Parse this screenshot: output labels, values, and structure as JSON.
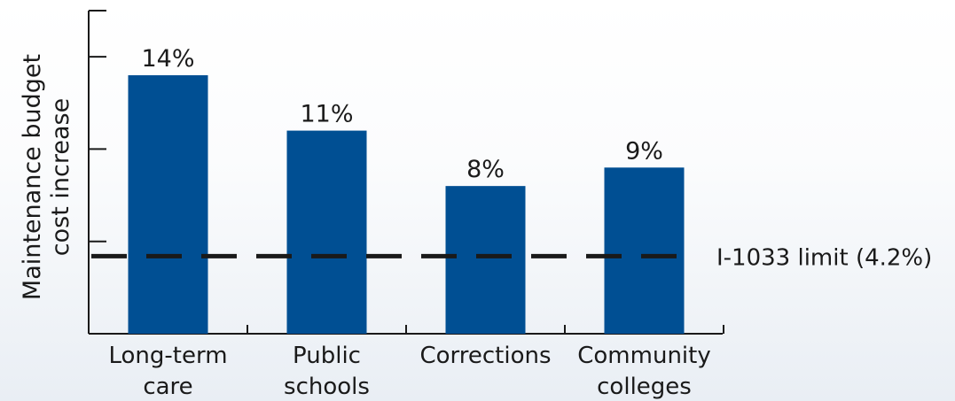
{
  "chart_data": {
    "type": "bar",
    "categories": [
      [
        "Long-term",
        "care"
      ],
      [
        "Public",
        "schools"
      ],
      [
        "Corrections"
      ],
      [
        "Community",
        "colleges"
      ]
    ],
    "values": [
      14,
      11,
      8,
      9
    ],
    "data_labels": [
      "14%",
      "11%",
      "8%",
      "9%"
    ],
    "title": "",
    "ylabel": [
      "Maintenance budget",
      "cost increase"
    ],
    "xlabel": "",
    "ylim": [
      0,
      17.5
    ],
    "reference_line": {
      "value": 4.2,
      "label": "I-1033 limit (4.2%)",
      "style": "dashed"
    },
    "grid": false,
    "colors": {
      "bar": "#004f93",
      "axis": "#1a1a1a",
      "reference": "#1a1a1a"
    }
  }
}
